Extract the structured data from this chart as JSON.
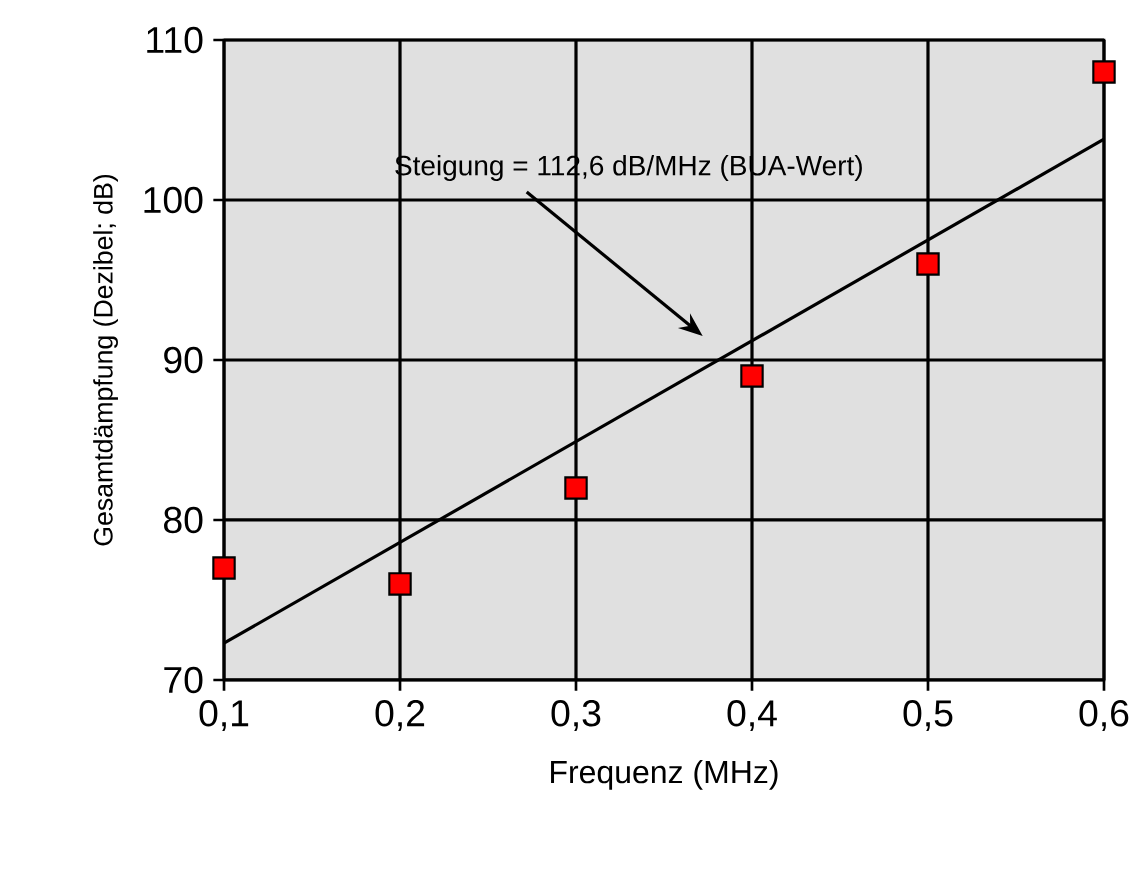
{
  "chart_data": {
    "type": "scatter",
    "xlabel": "Frequenz (MHz)",
    "ylabel": "Gesamtdämpfung (Dezibel; dB)",
    "x": [
      0.1,
      0.2,
      0.3,
      0.4,
      0.5,
      0.6
    ],
    "series": [
      {
        "color": "#ff0000",
        "marker": "square",
        "values": [
          77,
          76,
          82,
          89,
          96,
          108
        ]
      },
      {
        "type": "line",
        "color": "#000000",
        "marker": "none",
        "line_style": "solid",
        "x": [
          0.1,
          0.6
        ],
        "values": [
          72.3,
          103.8
        ]
      }
    ],
    "annotations": [
      "Steigung  = 112,6 dB/MHz (BUA-Wert)"
    ],
    "xlim": [
      0.1,
      0.6
    ],
    "xticks": [
      {
        "value": 0.1,
        "label": "0,1"
      },
      {
        "value": 0.2,
        "label": "0,2"
      },
      {
        "value": 0.3,
        "label": "0,3"
      },
      {
        "value": 0.4,
        "label": "0,4"
      },
      {
        "value": 0.5,
        "label": "0,5"
      },
      {
        "value": 0.6,
        "label": "0,6"
      }
    ],
    "ylim": [
      70,
      110
    ],
    "yticks": [
      70,
      80,
      90,
      100,
      110
    ],
    "grid": true
  }
}
